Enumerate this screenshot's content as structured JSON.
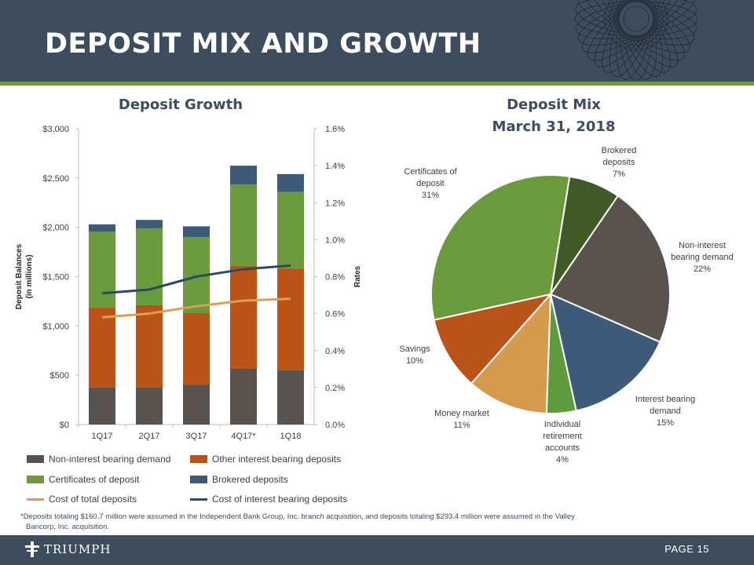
{
  "slide": {
    "title": "DEPOSIT MIX AND GROWTH",
    "footnote_line1": "*Deposits totaling $160.7 million were assumed in the Independent Bank Group, Inc. branch acquisition, and deposits totaling $293.4 million were assumed in the Valley",
    "footnote_line2": "Bancorp, Inc. acquisition.",
    "logo_text": "TRIUMPH",
    "page_label": "PAGE 15"
  },
  "colors": {
    "header_bg": "#3e4d5e",
    "accent_green": "#6f9a3c",
    "non_interest": "#58534f",
    "other_interest": "#bb5318",
    "certificates": "#6a9a3b",
    "brokered": "#3d5a78",
    "cost_total": "#d9a05a",
    "cost_interest": "#2e4a63"
  },
  "chart_data": [
    {
      "type": "bar",
      "stacked": true,
      "title": "Deposit Growth",
      "categories": [
        "1Q17",
        "2Q17",
        "3Q17",
        "4Q17*",
        "1Q18"
      ],
      "ylabel": "Deposit Balances\n(in millions)",
      "ylabel_line1": "Deposit Balances",
      "ylabel_line2": "(in millions)",
      "y2label": "Rates",
      "ylim": [
        0,
        3000
      ],
      "y2lim": [
        0,
        1.6
      ],
      "yticks": [
        "$0",
        "$500",
        "$1,000",
        "$1,500",
        "$2,000",
        "$2,500",
        "$3,000"
      ],
      "y2ticks": [
        "0.0%",
        "0.2%",
        "0.4%",
        "0.6%",
        "0.8%",
        "1.0%",
        "1.2%",
        "1.4%",
        "1.6%"
      ],
      "series": [
        {
          "name": "Non-interest bearing demand",
          "axis": "left",
          "kind": "bar",
          "values": [
            380,
            380,
            405,
            565,
            550
          ]
        },
        {
          "name": "Other interest bearing deposits",
          "axis": "left",
          "kind": "bar",
          "values": [
            805,
            830,
            725,
            1045,
            1030
          ]
        },
        {
          "name": "Certificates of deposit",
          "axis": "left",
          "kind": "bar",
          "values": [
            770,
            780,
            770,
            825,
            780
          ]
        },
        {
          "name": "Brokered deposits",
          "axis": "left",
          "kind": "bar",
          "values": [
            75,
            85,
            110,
            190,
            180
          ]
        },
        {
          "name": "Cost of total deposits",
          "axis": "right",
          "kind": "line",
          "values": [
            0.58,
            0.6,
            0.64,
            0.67,
            0.68
          ]
        },
        {
          "name": "Cost of interest bearing deposits",
          "axis": "right",
          "kind": "line",
          "values": [
            0.71,
            0.73,
            0.8,
            0.84,
            0.86
          ]
        }
      ],
      "legend_position": "bottom"
    },
    {
      "type": "pie",
      "title": "Deposit Mix",
      "subtitle": "March 31, 2018",
      "slices": [
        {
          "label": "Brokered deposits",
          "label_lines": [
            "Brokered",
            "deposits"
          ],
          "value": 7,
          "pct": "7%"
        },
        {
          "label": "Non-interest bearing demand",
          "label_lines": [
            "Non-interest",
            "bearing demand"
          ],
          "value": 22,
          "pct": "22%"
        },
        {
          "label": "Interest bearing demand",
          "label_lines": [
            "Interest bearing",
            "demand"
          ],
          "value": 15,
          "pct": "15%"
        },
        {
          "label": "Individual retirement accounts",
          "label_lines": [
            "Individual",
            "retirement",
            "accounts"
          ],
          "value": 4,
          "pct": "4%"
        },
        {
          "label": "Money market",
          "label_lines": [
            "Money market"
          ],
          "value": 11,
          "pct": "11%"
        },
        {
          "label": "Savings",
          "label_lines": [
            "Savings"
          ],
          "value": 10,
          "pct": "10%"
        },
        {
          "label": "Certificates of deposit",
          "label_lines": [
            "Certificates of",
            "deposit"
          ],
          "value": 31,
          "pct": "31%"
        }
      ]
    }
  ]
}
